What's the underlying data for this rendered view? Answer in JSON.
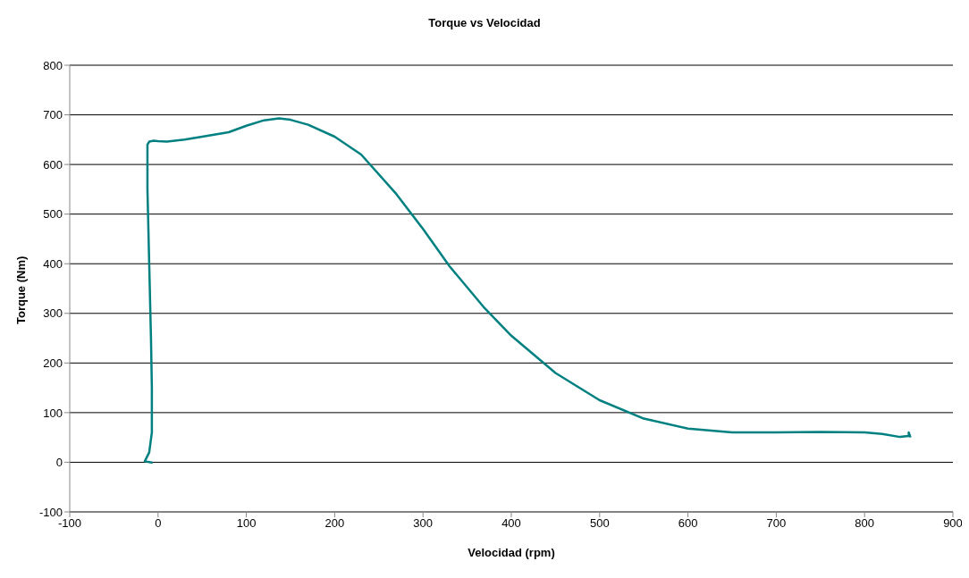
{
  "chart_data": {
    "type": "line",
    "title": "Torque vs Velocidad",
    "xlabel": "Velocidad (rpm)",
    "ylabel": "Torque (Nm)",
    "series": [
      {
        "color": "#008080",
        "x": [
          -6,
          -15,
          -10,
          -7,
          -7,
          -8,
          -10,
          -12,
          -12,
          -10,
          -5,
          0,
          10,
          30,
          50,
          80,
          100,
          120,
          137,
          150,
          170,
          200,
          230,
          270,
          300,
          330,
          370,
          400,
          450,
          500,
          550,
          600,
          650,
          700,
          750,
          800,
          820,
          840,
          850,
          850,
          852
        ],
        "values": [
          -1,
          2,
          20,
          60,
          150,
          250,
          400,
          550,
          640,
          646,
          648,
          647,
          646,
          650,
          656,
          665,
          678,
          689,
          693,
          690,
          680,
          656,
          620,
          540,
          470,
          395,
          310,
          255,
          180,
          125,
          88,
          68,
          60,
          60,
          61,
          60,
          57,
          51,
          53,
          60,
          50
        ]
      }
    ],
    "xlim": [
      -100,
      900
    ],
    "xticks": [
      -100,
      0,
      100,
      200,
      300,
      400,
      500,
      600,
      700,
      800,
      900
    ],
    "ylim": [
      -100,
      800
    ],
    "yticks": [
      -100,
      0,
      100,
      200,
      300,
      400,
      500,
      600,
      700,
      800
    ],
    "grid": "y",
    "legend": false,
    "marker": "none",
    "line_style": "solid"
  }
}
